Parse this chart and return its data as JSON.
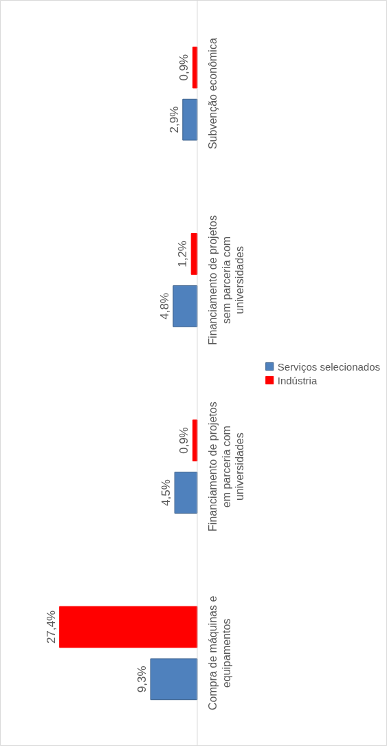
{
  "chart_data": {
    "type": "bar",
    "orientation": "horizontal",
    "categories": [
      "Subvenção econômica",
      "Financiamento de projetos sem parceria com universidades",
      "Financiamento de projetos em parceria com universidades",
      "Compra de máquinas e equipamentos"
    ],
    "series": [
      {
        "name": "Serviços selecionados",
        "color": "#4f81bd",
        "values": [
          2.9,
          4.8,
          4.5,
          9.3
        ],
        "value_labels": [
          "2,9%",
          "4,8%",
          "4,5%",
          "9,3%"
        ]
      },
      {
        "name": "Indústria",
        "color": "#ff0000",
        "values": [
          0.9,
          1.2,
          0.9,
          27.4
        ],
        "value_labels": [
          "0,9%",
          "1,2%",
          "0,9%",
          "27,4%"
        ]
      }
    ],
    "legend": "right"
  }
}
